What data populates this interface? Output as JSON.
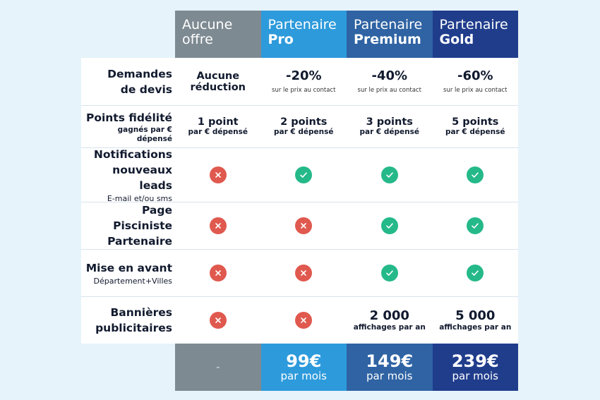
{
  "plans": [
    {
      "line1": "Aucune",
      "line2": "offre"
    },
    {
      "line1": "Partenaire",
      "line2": "Pro"
    },
    {
      "line1": "Partenaire",
      "line2": "Premium"
    },
    {
      "line1": "Partenaire",
      "line2": "Gold"
    }
  ],
  "rows": {
    "devis": {
      "label1": "Demandes",
      "label2": "de devis",
      "cells": [
        {
          "main": "Aucune",
          "main2": "réduction"
        },
        {
          "main": "-20%",
          "sub": "sur le prix au contact"
        },
        {
          "main": "-40%",
          "sub": "sur le prix au contact"
        },
        {
          "main": "-60%",
          "sub": "sur le prix au contact"
        }
      ]
    },
    "points": {
      "label": "Points fidélité",
      "sublabel": "gagnés par € dépensé",
      "cells": [
        {
          "main": "1 point",
          "sub": "par € dépensé"
        },
        {
          "main": "2 points",
          "sub": "par € dépensé"
        },
        {
          "main": "3 points",
          "sub": "par € dépensé"
        },
        {
          "main": "5 points",
          "sub": "par € dépensé"
        }
      ]
    },
    "notifications": {
      "label1": "Notifications",
      "label2": "nouveaux leads",
      "sublabel": "E-mail et/ou sms",
      "cells": [
        "no",
        "yes",
        "yes",
        "yes"
      ]
    },
    "page": {
      "label1": "Page Pisciniste",
      "label2": "Partenaire",
      "cells": [
        "no",
        "no",
        "yes",
        "yes"
      ]
    },
    "miseenavant": {
      "label": "Mise en avant",
      "sublabel": "Département+Villes",
      "cells": [
        "no",
        "no",
        "yes",
        "yes"
      ]
    },
    "bannieres": {
      "label1": "Bannières",
      "label2": "publicitaires",
      "cells": [
        {
          "icon": "no"
        },
        {
          "icon": "no"
        },
        {
          "main": "2 000",
          "sub": "affichages par an"
        },
        {
          "main": "5 000",
          "sub": "affichages par an"
        }
      ]
    }
  },
  "prices": [
    {
      "dash": "-"
    },
    {
      "price": "99€",
      "per": "par mois"
    },
    {
      "price": "149€",
      "per": "par mois"
    },
    {
      "price": "239€",
      "per": "par mois"
    }
  ],
  "colors": {
    "background": "#e6f3fa",
    "aucune": "#7e8a92",
    "pro": "#2d9adb",
    "premium": "#2f63a3",
    "gold": "#203d8c",
    "check": "#25b98a",
    "cross": "#e0594f"
  },
  "icons": {
    "yes": "check-icon",
    "no": "cross-icon"
  }
}
